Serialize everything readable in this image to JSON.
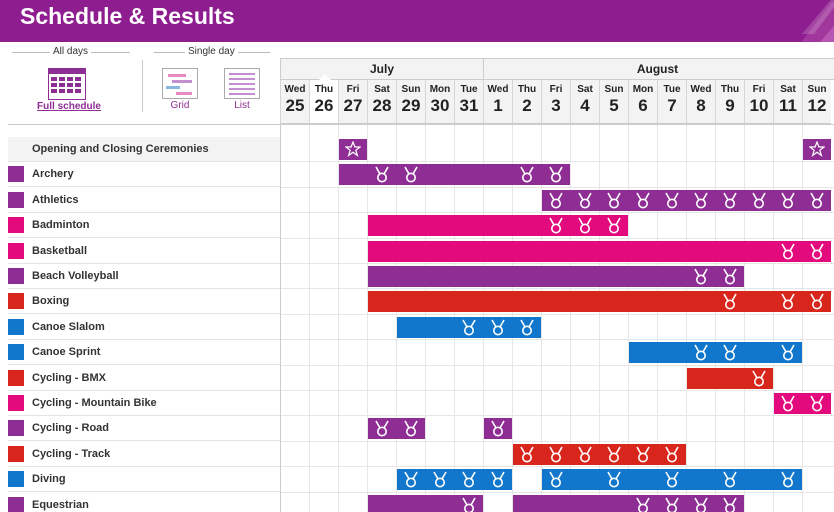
{
  "page": {
    "title": "Schedule & Results"
  },
  "controls": {
    "all_days_label": "All days",
    "single_day_label": "Single day",
    "full_schedule_label": "Full schedule",
    "grid_label": "Grid",
    "list_label": "List",
    "full_schedule_icon": "calendar-icon",
    "grid_icon": "grid-icon",
    "list_icon": "list-icon"
  },
  "months": [
    {
      "label": "July",
      "start_col": 0,
      "span": 7
    },
    {
      "label": "August",
      "start_col": 7,
      "span": 12
    }
  ],
  "dates": [
    {
      "dow": "Wed",
      "day": "25"
    },
    {
      "dow": "Thu",
      "day": "26"
    },
    {
      "dow": "Fri",
      "day": "27"
    },
    {
      "dow": "Sat",
      "day": "28"
    },
    {
      "dow": "Sun",
      "day": "29"
    },
    {
      "dow": "Mon",
      "day": "30"
    },
    {
      "dow": "Tue",
      "day": "31"
    },
    {
      "dow": "Wed",
      "day": "1"
    },
    {
      "dow": "Thu",
      "day": "2"
    },
    {
      "dow": "Fri",
      "day": "3"
    },
    {
      "dow": "Sat",
      "day": "4"
    },
    {
      "dow": "Sun",
      "day": "5"
    },
    {
      "dow": "Mon",
      "day": "6"
    },
    {
      "dow": "Tue",
      "day": "7"
    },
    {
      "dow": "Wed",
      "day": "8"
    },
    {
      "dow": "Thu",
      "day": "9"
    },
    {
      "dow": "Fri",
      "day": "10"
    },
    {
      "dow": "Sat",
      "day": "11"
    },
    {
      "dow": "Sun",
      "day": "12"
    }
  ],
  "highlight_date_index": 1,
  "colors": {
    "header_bg": "#8e1d8f",
    "purple": "#8e2e95",
    "magenta": "#e20a7d",
    "red": "#d9261c",
    "blue": "#1177cc",
    "ceremony": "#8e2e95"
  },
  "sports": [
    {
      "name": "Opening and Closing Ceremonies",
      "color": "purple",
      "swatch": false,
      "type": "ceremony",
      "bars": [
        {
          "start": 2,
          "end": 2
        },
        {
          "start": 18,
          "end": 18
        }
      ],
      "medals": [],
      "stars": [
        2,
        18
      ]
    },
    {
      "name": "Archery",
      "color": "purple",
      "swatch": true,
      "bars": [
        {
          "start": 2,
          "end": 9
        }
      ],
      "medals": [
        3,
        4,
        8,
        9
      ]
    },
    {
      "name": "Athletics",
      "color": "purple",
      "swatch": true,
      "bars": [
        {
          "start": 9,
          "end": 18
        }
      ],
      "medals": [
        9,
        10,
        11,
        12,
        13,
        14,
        15,
        16,
        17,
        18
      ]
    },
    {
      "name": "Badminton",
      "color": "magenta",
      "swatch": true,
      "bars": [
        {
          "start": 3,
          "end": 11
        }
      ],
      "medals": [
        9,
        10,
        11
      ]
    },
    {
      "name": "Basketball",
      "color": "magenta",
      "swatch": true,
      "bars": [
        {
          "start": 3,
          "end": 18
        }
      ],
      "medals": [
        17,
        18
      ]
    },
    {
      "name": "Beach Volleyball",
      "color": "purple",
      "swatch": true,
      "bars": [
        {
          "start": 3,
          "end": 15
        }
      ],
      "medals": [
        14,
        15
      ]
    },
    {
      "name": "Boxing",
      "color": "red",
      "swatch": true,
      "bars": [
        {
          "start": 3,
          "end": 18
        }
      ],
      "medals": [
        15,
        17,
        18
      ]
    },
    {
      "name": "Canoe Slalom",
      "color": "blue",
      "swatch": true,
      "bars": [
        {
          "start": 4,
          "end": 8
        }
      ],
      "medals": [
        6,
        7,
        8
      ]
    },
    {
      "name": "Canoe Sprint",
      "color": "blue",
      "swatch": true,
      "bars": [
        {
          "start": 12,
          "end": 17
        }
      ],
      "medals": [
        14,
        15,
        17
      ]
    },
    {
      "name": "Cycling - BMX",
      "color": "red",
      "swatch": true,
      "bars": [
        {
          "start": 14,
          "end": 16
        }
      ],
      "medals": [
        16
      ]
    },
    {
      "name": "Cycling - Mountain Bike",
      "color": "magenta",
      "swatch": true,
      "bars": [
        {
          "start": 17,
          "end": 18
        }
      ],
      "medals": [
        17,
        18
      ]
    },
    {
      "name": "Cycling - Road",
      "color": "purple",
      "swatch": true,
      "bars": [
        {
          "start": 3,
          "end": 4
        },
        {
          "start": 7,
          "end": 7
        }
      ],
      "medals": [
        3,
        4,
        7
      ]
    },
    {
      "name": "Cycling - Track",
      "color": "red",
      "swatch": true,
      "bars": [
        {
          "start": 8,
          "end": 13
        }
      ],
      "medals": [
        8,
        9,
        10,
        11,
        12,
        13
      ]
    },
    {
      "name": "Diving",
      "color": "blue",
      "swatch": true,
      "bars": [
        {
          "start": 4,
          "end": 7
        },
        {
          "start": 9,
          "end": 17
        }
      ],
      "medals": [
        4,
        5,
        6,
        7,
        9,
        11,
        13,
        15,
        17
      ]
    },
    {
      "name": "Equestrian",
      "color": "purple",
      "swatch": true,
      "bars": [
        {
          "start": 3,
          "end": 6
        },
        {
          "start": 8,
          "end": 15
        }
      ],
      "medals": [
        6,
        12,
        13,
        14,
        15
      ]
    }
  ]
}
